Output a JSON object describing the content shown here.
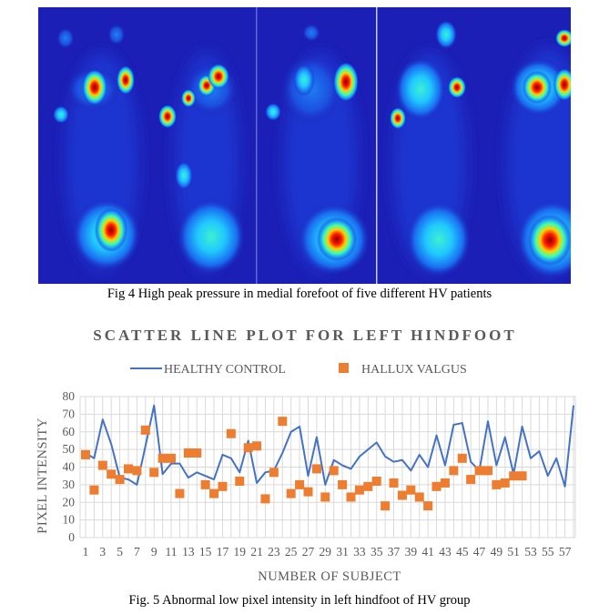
{
  "figure4": {
    "caption": "Fig 4 High peak pressure in medial forefoot of five different HV patients"
  },
  "figure5": {
    "caption": "Fig. 5 Abnormal low pixel intensity in left hindfoot of HV group"
  },
  "colors": {
    "line": "#4472c4",
    "marker": "#ed7d31",
    "grid": "#d9d9d9",
    "text": "#595959",
    "heatmap_background": "#1c1fb5"
  },
  "chart_data": {
    "type": "scatter",
    "title": "SCATTER LINE PLOT FOR LEFT HINDFOOT",
    "xlabel": "NUMBER OF SUBJECT",
    "ylabel": "PIXEL INTENSITY",
    "ylim": [
      0,
      80
    ],
    "yticks": [
      0,
      10,
      20,
      30,
      40,
      50,
      60,
      70,
      80
    ],
    "xlim": [
      1,
      58
    ],
    "xtick_labels": [
      "1",
      "3",
      "5",
      "7",
      "9",
      "11",
      "13",
      "15",
      "17",
      "19",
      "21",
      "23",
      "25",
      "27",
      "29",
      "31",
      "33",
      "35",
      "37",
      "39",
      "41",
      "43",
      "45",
      "47",
      "49",
      "51",
      "53",
      "55",
      "57"
    ],
    "legend_position": "top",
    "grid": true,
    "series": [
      {
        "name": "HEALTHY CONTROL",
        "style": "line",
        "x": [
          1,
          2,
          3,
          4,
          5,
          6,
          7,
          8,
          9,
          10,
          11,
          12,
          13,
          14,
          15,
          16,
          17,
          18,
          19,
          20,
          21,
          22,
          23,
          24,
          25,
          26,
          27,
          28,
          29,
          30,
          31,
          32,
          33,
          34,
          35,
          36,
          37,
          38,
          39,
          40,
          41,
          42,
          43,
          44,
          45,
          46,
          47,
          48,
          49,
          50,
          51,
          52,
          53,
          54,
          55,
          56,
          57,
          58
        ],
        "values": [
          48,
          45,
          67,
          53,
          34,
          33,
          30,
          52,
          75,
          36,
          42,
          42,
          34,
          37,
          35,
          33,
          47,
          45,
          37,
          55,
          31,
          37,
          38,
          48,
          60,
          63,
          35,
          57,
          30,
          44,
          41,
          39,
          46,
          50,
          54,
          46,
          43,
          44,
          38,
          47,
          40,
          58,
          41,
          64,
          65,
          43,
          38,
          66,
          41,
          57,
          36,
          63,
          45,
          49,
          35,
          45,
          29,
          75
        ]
      },
      {
        "name": "HALLUX VALGUS",
        "style": "marker",
        "x": [
          1,
          2,
          3,
          4,
          5,
          6,
          7,
          8,
          9,
          10,
          11,
          12,
          13,
          14,
          15,
          16,
          17,
          18,
          19,
          20,
          21,
          22,
          23,
          24,
          25,
          26,
          27,
          28,
          29,
          30,
          31,
          32,
          33,
          34,
          35,
          36,
          37,
          38,
          39,
          40,
          41,
          42,
          43,
          44,
          45,
          46,
          47,
          48,
          49,
          50,
          51,
          52
        ],
        "values": [
          47,
          27,
          41,
          36,
          33,
          39,
          38,
          61,
          37,
          45,
          45,
          25,
          48,
          48,
          30,
          25,
          29,
          59,
          32,
          51,
          52,
          22,
          37,
          66,
          25,
          30,
          26,
          39,
          23,
          38,
          30,
          23,
          27,
          29,
          32,
          18,
          31,
          24,
          27,
          23,
          18,
          29,
          31,
          38,
          45,
          33,
          38,
          38,
          30,
          31,
          35,
          35
        ]
      }
    ]
  }
}
